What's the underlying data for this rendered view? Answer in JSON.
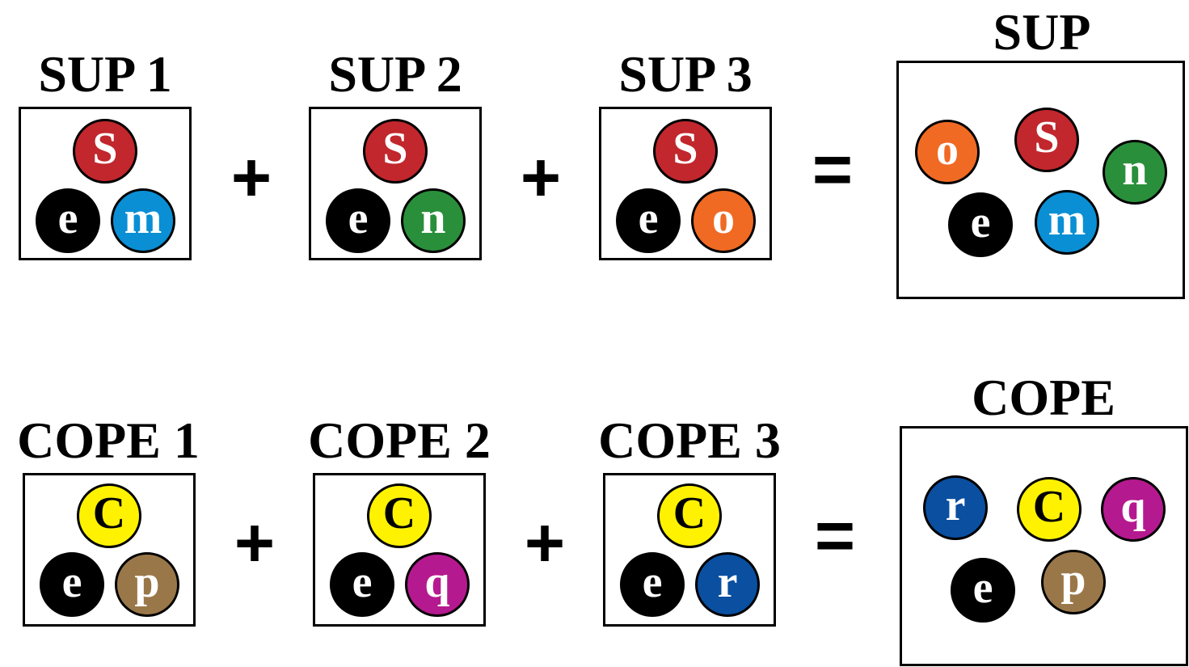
{
  "rows": [
    {
      "groups": [
        {
          "title": "SUP 1",
          "balls": [
            {
              "letter": "S",
              "color": "#c1272d"
            },
            {
              "letter": "e",
              "color": "#000000"
            },
            {
              "letter": "m",
              "color": "#0a8fd4"
            }
          ]
        },
        {
          "title": "SUP 2",
          "balls": [
            {
              "letter": "S",
              "color": "#c1272d"
            },
            {
              "letter": "e",
              "color": "#000000"
            },
            {
              "letter": "n",
              "color": "#2a8f3a"
            }
          ]
        },
        {
          "title": "SUP 3",
          "balls": [
            {
              "letter": "S",
              "color": "#c1272d"
            },
            {
              "letter": "e",
              "color": "#000000"
            },
            {
              "letter": "o",
              "color": "#f06a24"
            }
          ]
        }
      ],
      "operators": [
        "+",
        "+",
        "="
      ],
      "result": {
        "title": "SUP",
        "balls": [
          {
            "letter": "o",
            "color": "#f06a24"
          },
          {
            "letter": "S",
            "color": "#c1272d"
          },
          {
            "letter": "n",
            "color": "#2a8f3a"
          },
          {
            "letter": "e",
            "color": "#000000"
          },
          {
            "letter": "m",
            "color": "#0a8fd4"
          }
        ]
      }
    },
    {
      "groups": [
        {
          "title": "COPE 1",
          "balls": [
            {
              "letter": "C",
              "color": "#fff200",
              "text_color": "#000000"
            },
            {
              "letter": "e",
              "color": "#000000"
            },
            {
              "letter": "p",
              "color": "#9a7749"
            }
          ]
        },
        {
          "title": "COPE 2",
          "balls": [
            {
              "letter": "C",
              "color": "#fff200",
              "text_color": "#000000"
            },
            {
              "letter": "e",
              "color": "#000000"
            },
            {
              "letter": "q",
              "color": "#b5198f"
            }
          ]
        },
        {
          "title": "COPE 3",
          "balls": [
            {
              "letter": "C",
              "color": "#fff200",
              "text_color": "#000000"
            },
            {
              "letter": "e",
              "color": "#000000"
            },
            {
              "letter": "r",
              "color": "#0a4fa0"
            }
          ]
        }
      ],
      "operators": [
        "+",
        "+",
        "="
      ],
      "result": {
        "title": "COPE",
        "balls": [
          {
            "letter": "r",
            "color": "#0a4fa0"
          },
          {
            "letter": "C",
            "color": "#fff200",
            "text_color": "#000000"
          },
          {
            "letter": "q",
            "color": "#b5198f"
          },
          {
            "letter": "e",
            "color": "#000000"
          },
          {
            "letter": "p",
            "color": "#9a7749"
          }
        ]
      }
    }
  ]
}
